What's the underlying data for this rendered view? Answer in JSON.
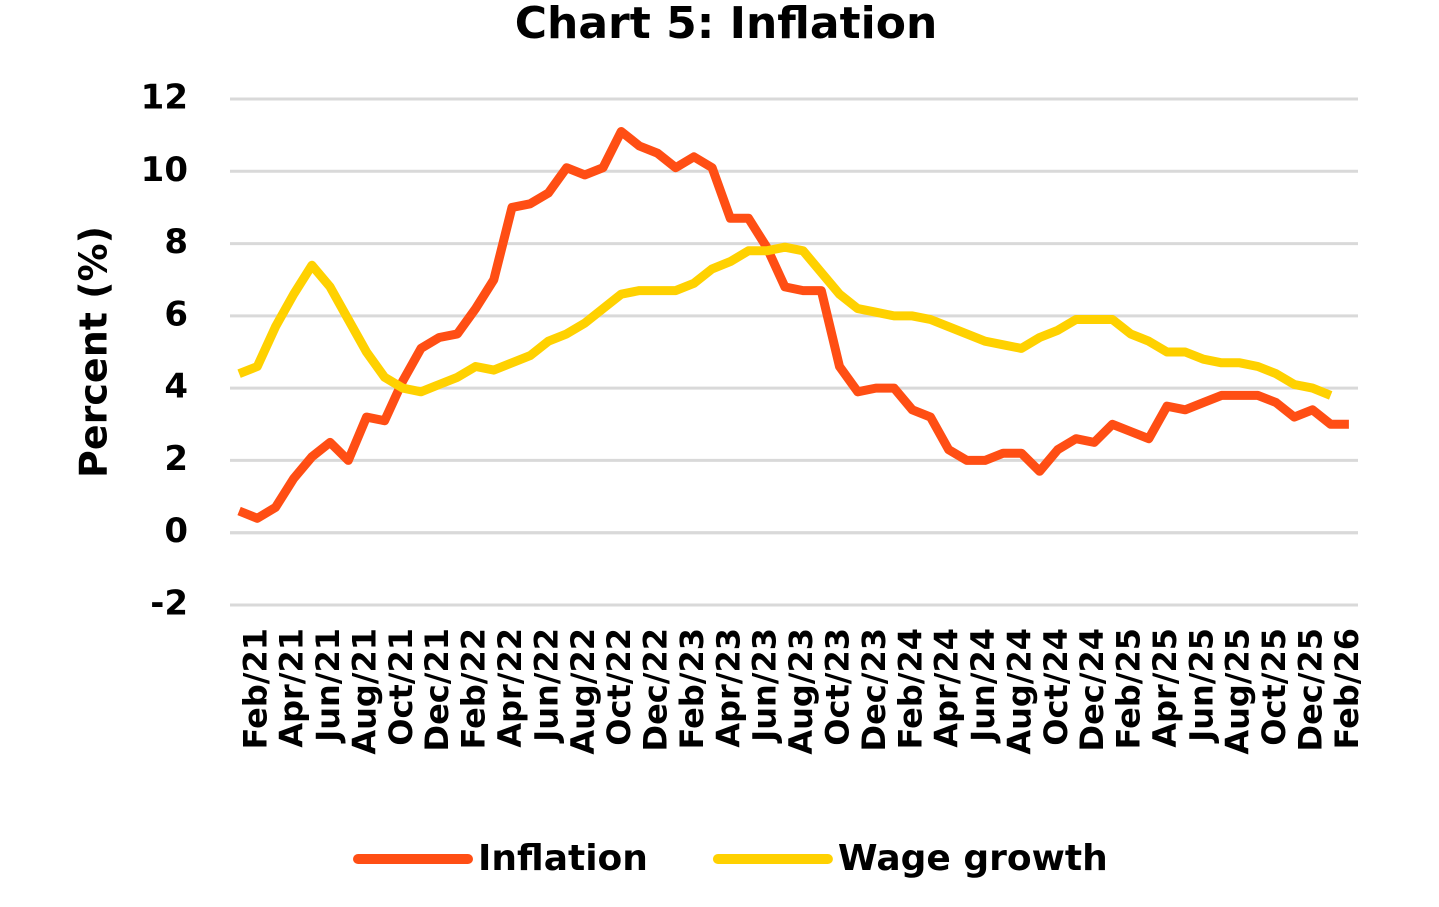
{
  "chart_data": {
    "type": "line",
    "title": "Chart 5: Inflation",
    "y_label": "Percent (%)",
    "categories": [
      null,
      "Feb/21",
      null,
      "Apr/21",
      null,
      "Jun/21",
      null,
      "Aug/21",
      null,
      "Oct/21",
      null,
      "Dec/21",
      null,
      "Feb/22",
      null,
      "Apr/22",
      null,
      "Jun/22",
      null,
      "Aug/22",
      null,
      "Oct/22",
      null,
      "Dec/22",
      null,
      "Feb/23",
      null,
      "Apr/23",
      null,
      "Jun/23",
      null,
      "Aug/23",
      null,
      "Oct/23",
      null,
      "Dec/23",
      null,
      "Feb/24",
      null,
      "Apr/24",
      null,
      "Jun/24",
      null,
      "Aug/24",
      null,
      "Oct/24",
      null,
      "Dec/24",
      null,
      "Feb/25",
      null,
      "Apr/25",
      null,
      "Jun/25",
      null,
      "Aug/25",
      null,
      "Oct/25",
      null,
      "Dec/25",
      null,
      "Feb/26"
    ],
    "series": [
      {
        "name": "Inflation",
        "color": "#ff4e14",
        "values": [
          0.6,
          0.4,
          0.7,
          1.5,
          2.1,
          2.5,
          2.0,
          3.2,
          3.1,
          4.2,
          5.1,
          5.4,
          5.5,
          6.2,
          7.0,
          9.0,
          9.1,
          9.4,
          10.1,
          9.9,
          10.1,
          11.1,
          10.7,
          10.5,
          10.1,
          10.4,
          10.1,
          8.7,
          8.7,
          7.9,
          6.8,
          6.7,
          6.7,
          4.6,
          3.9,
          4.0,
          4.0,
          3.4,
          3.2,
          2.3,
          2.0,
          2.0,
          2.2,
          2.2,
          1.7,
          2.3,
          2.6,
          2.5,
          3.0,
          2.8,
          2.6,
          3.5,
          3.4,
          3.6,
          3.8,
          3.8,
          3.8,
          3.6,
          3.2,
          3.4,
          3.0,
          3.0
        ]
      },
      {
        "name": "Wage growth",
        "color": "#ffd100",
        "values": [
          4.4,
          4.6,
          5.7,
          6.6,
          7.4,
          6.8,
          5.9,
          5.0,
          4.3,
          4.0,
          3.9,
          4.1,
          4.3,
          4.6,
          4.5,
          4.7,
          4.9,
          5.3,
          5.5,
          5.8,
          6.2,
          6.6,
          6.7,
          6.7,
          6.7,
          6.9,
          7.3,
          7.5,
          7.8,
          7.8,
          7.9,
          7.8,
          7.2,
          6.6,
          6.2,
          6.1,
          6.0,
          6.0,
          5.9,
          5.7,
          5.5,
          5.3,
          5.2,
          5.1,
          5.4,
          5.6,
          5.9,
          5.9,
          5.9,
          5.5,
          5.3,
          5.0,
          5.0,
          4.8,
          4.7,
          4.7,
          4.6,
          4.4,
          4.1,
          4.0,
          3.8,
          null
        ]
      }
    ],
    "ylim": [
      -2,
      12
    ],
    "yticks": [
      -2,
      0,
      2,
      4,
      6,
      8,
      10,
      12
    ],
    "grid": true
  }
}
